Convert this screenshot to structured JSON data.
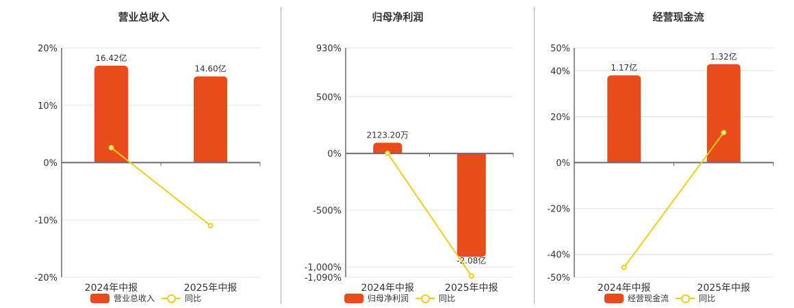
{
  "colors": {
    "bar": "#E84C1C",
    "line": "#F5CC14",
    "grid": "#DDE5EE",
    "axis": "#666A73",
    "divider": "#AAAAAA"
  },
  "charts": [
    {
      "title": "营业总收入",
      "legend": {
        "bar_label": "营业总收入",
        "line_label": "同比"
      }
    },
    {
      "title": "归母净利润",
      "legend": {
        "bar_label": "归母净利润",
        "line_label": "同比"
      }
    },
    {
      "title": "经营现金流",
      "legend": {
        "bar_label": "经营现金流",
        "line_label": "同比"
      }
    }
  ],
  "chart_data": [
    {
      "type": "bar",
      "title": "营业总收入",
      "categories": [
        "2024年中报",
        "2025年中报"
      ],
      "series": [
        {
          "name": "营业总收入",
          "type": "bar",
          "values": [
            16.42,
            14.6
          ],
          "unit": "亿",
          "labels": [
            "16.42亿",
            "14.60亿"
          ]
        },
        {
          "name": "同比",
          "type": "line",
          "values": [
            2.6,
            -11.0
          ],
          "unit": "%"
        }
      ],
      "yticks": [
        "20%",
        "10%",
        "0%",
        "-10%",
        "-20%"
      ],
      "ylim": [
        -20,
        20
      ],
      "grid": true,
      "legend_position": "bottom"
    },
    {
      "type": "bar",
      "title": "归母净利润",
      "categories": [
        "2024年中报",
        "2025年中报"
      ],
      "series": [
        {
          "name": "归母净利润",
          "type": "bar",
          "values": [
            0.2123,
            -2.08
          ],
          "unit": "亿",
          "labels": [
            "2123.20万",
            "-2.08亿"
          ]
        },
        {
          "name": "同比",
          "type": "line",
          "values": [
            1.8,
            -1080
          ],
          "unit": "%"
        }
      ],
      "yticks": [
        "930%",
        "500%",
        "0%",
        "-500%",
        "-1,000%",
        "-1,090%"
      ],
      "ylim": [
        -1090,
        930
      ],
      "grid": true,
      "legend_position": "bottom"
    },
    {
      "type": "bar",
      "title": "经营现金流",
      "categories": [
        "2024年中报",
        "2025年中报"
      ],
      "series": [
        {
          "name": "经营现金流",
          "type": "bar",
          "values": [
            1.17,
            1.32
          ],
          "unit": "亿",
          "labels": [
            "1.17亿",
            "1.32亿"
          ]
        },
        {
          "name": "同比",
          "type": "line",
          "values": [
            -45.7,
            13.1
          ],
          "unit": "%"
        }
      ],
      "yticks": [
        "50%",
        "40%",
        "20%",
        "0%",
        "-20%",
        "-40%",
        "-50%"
      ],
      "ylim": [
        -50,
        50
      ],
      "grid": true,
      "legend_position": "bottom"
    }
  ]
}
